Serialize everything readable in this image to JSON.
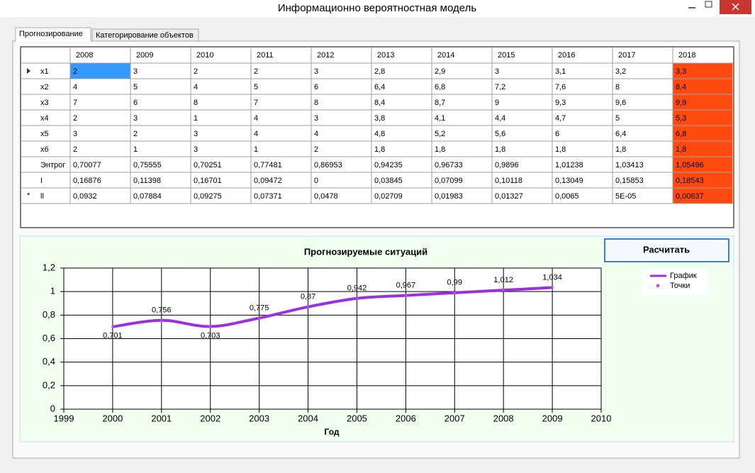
{
  "window": {
    "title": "Информационно вероятностная модель"
  },
  "tabs": [
    "Прогнозирование",
    "Категорирование объектов"
  ],
  "table": {
    "columns": [
      "2008",
      "2009",
      "2010",
      "2011",
      "2012",
      "2013",
      "2014",
      "2015",
      "2016",
      "2017",
      "2018"
    ],
    "rows": [
      {
        "label": "x1",
        "cells": [
          "2",
          "3",
          "2",
          "2",
          "3",
          "2,8",
          "2,9",
          "3",
          "3,1",
          "3,2",
          "3,3"
        ]
      },
      {
        "label": "x2",
        "cells": [
          "4",
          "5",
          "4",
          "5",
          "6",
          "6,4",
          "6,8",
          "7,2",
          "7,6",
          "8",
          "8,4"
        ]
      },
      {
        "label": "x3",
        "cells": [
          "7",
          "6",
          "8",
          "7",
          "8",
          "8,4",
          "8,7",
          "9",
          "9,3",
          "9,6",
          "9,9"
        ]
      },
      {
        "label": "x4",
        "cells": [
          "2",
          "3",
          "1",
          "4",
          "3",
          "3,8",
          "4,1",
          "4,4",
          "4,7",
          "5",
          "5,3"
        ]
      },
      {
        "label": "x5",
        "cells": [
          "3",
          "2",
          "3",
          "4",
          "4",
          "4,8",
          "5,2",
          "5,6",
          "6",
          "6,4",
          "6,8"
        ]
      },
      {
        "label": "x6",
        "cells": [
          "2",
          "1",
          "3",
          "1",
          "2",
          "1,8",
          "1,8",
          "1,8",
          "1,8",
          "1,8",
          "1,8"
        ]
      },
      {
        "label": "Энтрог",
        "cells": [
          "0,70077",
          "0,75555",
          "0,70251",
          "0,77481",
          "0,86953",
          "0,94235",
          "0,96733",
          "0,9896",
          "1,01238",
          "1,03413",
          "1,05496"
        ]
      },
      {
        "label": "I",
        "cells": [
          "0,16876",
          "0,11398",
          "0,16701",
          "0,09472",
          "0",
          "0,03845",
          "0,07099",
          "0,10118",
          "0,13049",
          "0,15853",
          "0,18543"
        ]
      },
      {
        "label": "ll",
        "marker": "*",
        "cells": [
          "0,0932",
          "0,07884",
          "0,09275",
          "0,07371",
          "0,0478",
          "0,02709",
          "0,01983",
          "0,01327",
          "0,0065",
          "5E-05",
          "0,00637"
        ]
      }
    ]
  },
  "button": "Расчитать",
  "chart_data": {
    "type": "line",
    "title": "Прогнозируемые ситуаций",
    "x_label": "Год",
    "x": [
      2000,
      2001,
      2002,
      2003,
      2004,
      2005,
      2006,
      2007,
      2008,
      2009
    ],
    "series": [
      {
        "name": "График",
        "style": "line",
        "color": "#9b30e0",
        "values": [
          0.701,
          0.756,
          0.703,
          0.775,
          0.87,
          0.942,
          0.967,
          0.99,
          1.012,
          1.034
        ],
        "value_labels": [
          "0,701",
          "0,756",
          "0,703",
          "0,775",
          "0,87",
          "0,942",
          "0,967",
          "0,99",
          "1,012",
          "1,034"
        ]
      },
      {
        "name": "Точки",
        "style": "point",
        "color": "#c050e0",
        "values": [
          0.701,
          0.756,
          0.703,
          0.775,
          0.87,
          0.942,
          0.967,
          0.99,
          1.012,
          1.034
        ]
      }
    ],
    "xlim": [
      1999,
      2010
    ],
    "xticks": [
      1999,
      2000,
      2001,
      2002,
      2003,
      2004,
      2005,
      2006,
      2007,
      2008,
      2009,
      2010
    ],
    "ylim": [
      0,
      1.2
    ],
    "yticks": [
      0,
      {
        "value": 0.2,
        "label": "0,2"
      },
      {
        "value": 0.4,
        "label": "0,4"
      },
      {
        "value": 0.6,
        "label": "0,6"
      },
      {
        "value": 0.8,
        "label": "0,8"
      },
      1,
      {
        "value": 1.2,
        "label": "1,2"
      }
    ],
    "grid": true
  }
}
